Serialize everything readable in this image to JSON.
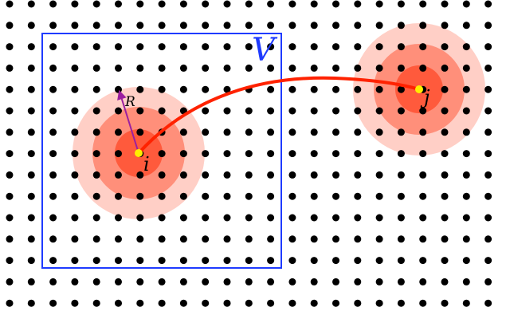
{
  "diagram": {
    "lattice": {
      "description": "",
      "dot_color": "#000000"
    },
    "region": {
      "label": "V",
      "stroke": "#1f3bff"
    },
    "site_i": {
      "label": "i",
      "center_color": "#ffee00",
      "halo_colors": [
        "#ffcfc6",
        "#ff8f7a",
        "#ff5a3c"
      ],
      "radius_arrow": {
        "label": "R",
        "color": "#9b1fa0"
      }
    },
    "site_j": {
      "label": "j",
      "center_color": "#ffee00",
      "halo_colors": [
        "#ffcfc6",
        "#ff8f7a",
        "#ff5a3c"
      ]
    },
    "interaction": {
      "color": "#ff2200"
    }
  }
}
